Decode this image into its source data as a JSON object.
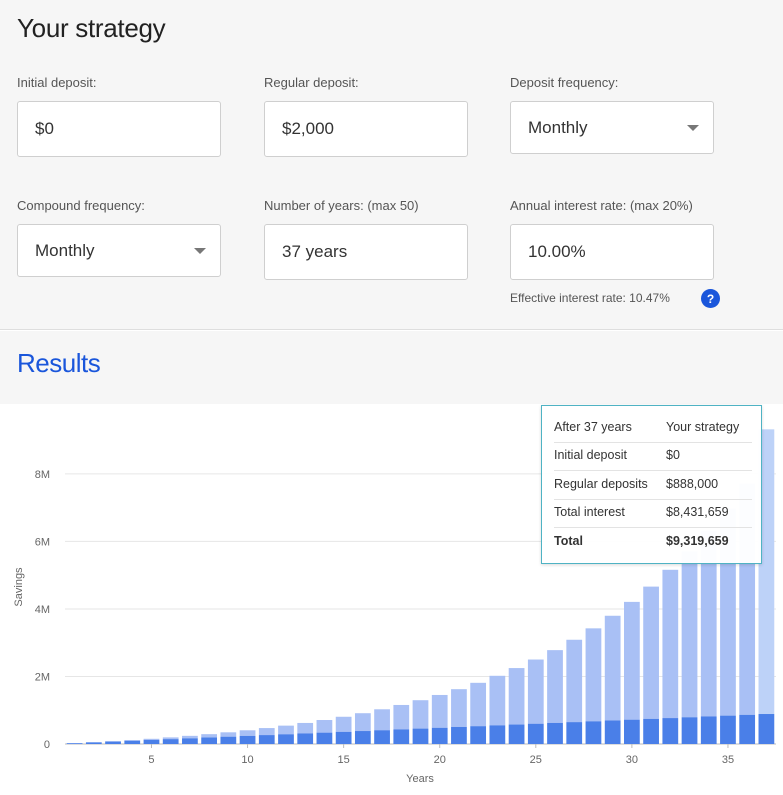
{
  "strategy": {
    "title": "Your strategy",
    "initial_deposit": {
      "label": "Initial deposit:",
      "value": "$0"
    },
    "regular_deposit": {
      "label": "Regular deposit:",
      "value": "$2,000"
    },
    "deposit_frequency": {
      "label": "Deposit frequency:",
      "value": "Monthly"
    },
    "compound_frequency": {
      "label": "Compound frequency:",
      "value": "Monthly"
    },
    "years": {
      "label": "Number of years: (max 50)",
      "value": "37 years"
    },
    "rate": {
      "label": "Annual interest rate: (max 20%)",
      "value": "10.00%"
    },
    "effective_rate": "Effective interest rate: 10.47%",
    "help_glyph": "?"
  },
  "results": {
    "title": "Results"
  },
  "tooltip": {
    "header_left": "After 37 years",
    "header_right": "Your strategy",
    "rows": [
      {
        "label": "Initial deposit",
        "value": "$0"
      },
      {
        "label": "Regular deposits",
        "value": "$888,000"
      },
      {
        "label": "Total interest",
        "value": "$8,431,659"
      }
    ],
    "total": {
      "label": "Total",
      "value": "$9,319,659"
    }
  },
  "colors": {
    "deposits": "#4a7fe8",
    "interest": "#a9c0f5",
    "accent": "#1a56db",
    "hover_bar": "#bdd2f8"
  },
  "chart_data": {
    "type": "bar",
    "stacked": true,
    "xlabel": "Years",
    "ylabel": "Savings",
    "x": [
      1,
      2,
      3,
      4,
      5,
      6,
      7,
      8,
      9,
      10,
      11,
      12,
      13,
      14,
      15,
      16,
      17,
      18,
      19,
      20,
      21,
      22,
      23,
      24,
      25,
      26,
      27,
      28,
      29,
      30,
      31,
      32,
      33,
      34,
      35,
      36,
      37
    ],
    "xticks": [
      "5",
      "10",
      "15",
      "20",
      "25",
      "30",
      "35"
    ],
    "yticks": [
      "0",
      "2M",
      "4M",
      "6M",
      "8M"
    ],
    "ylim": [
      0,
      9300000
    ],
    "series": [
      {
        "values": [
          24000,
          48000,
          72000,
          96000,
          120000,
          144000,
          168000,
          192000,
          216000,
          240000,
          264000,
          288000,
          312000,
          336000,
          360000,
          384000,
          408000,
          432000,
          456000,
          480000,
          504000,
          528000,
          552000,
          576000,
          600000,
          624000,
          648000,
          672000,
          696000,
          720000,
          744000,
          768000,
          792000,
          816000,
          840000,
          864000,
          888000
        ]
      },
      {
        "values": [
          1136,
          4691,
          10887,
          19979,
          34255,
          52037,
          73685,
          99613,
          130284,
          166207,
          207943,
          256112,
          311400,
          374568,
          446452,
          527974,
          620148,
          724093,
          841040,
          972343,
          1119494,
          1284133,
          1468065,
          1673270,
          1901925,
          2156418,
          2439368,
          2753651,
          3102419,
          3489131,
          3917580,
          4391919,
          4916700,
          5496914,
          6138032,
          6846052,
          8431659
        ]
      }
    ]
  }
}
